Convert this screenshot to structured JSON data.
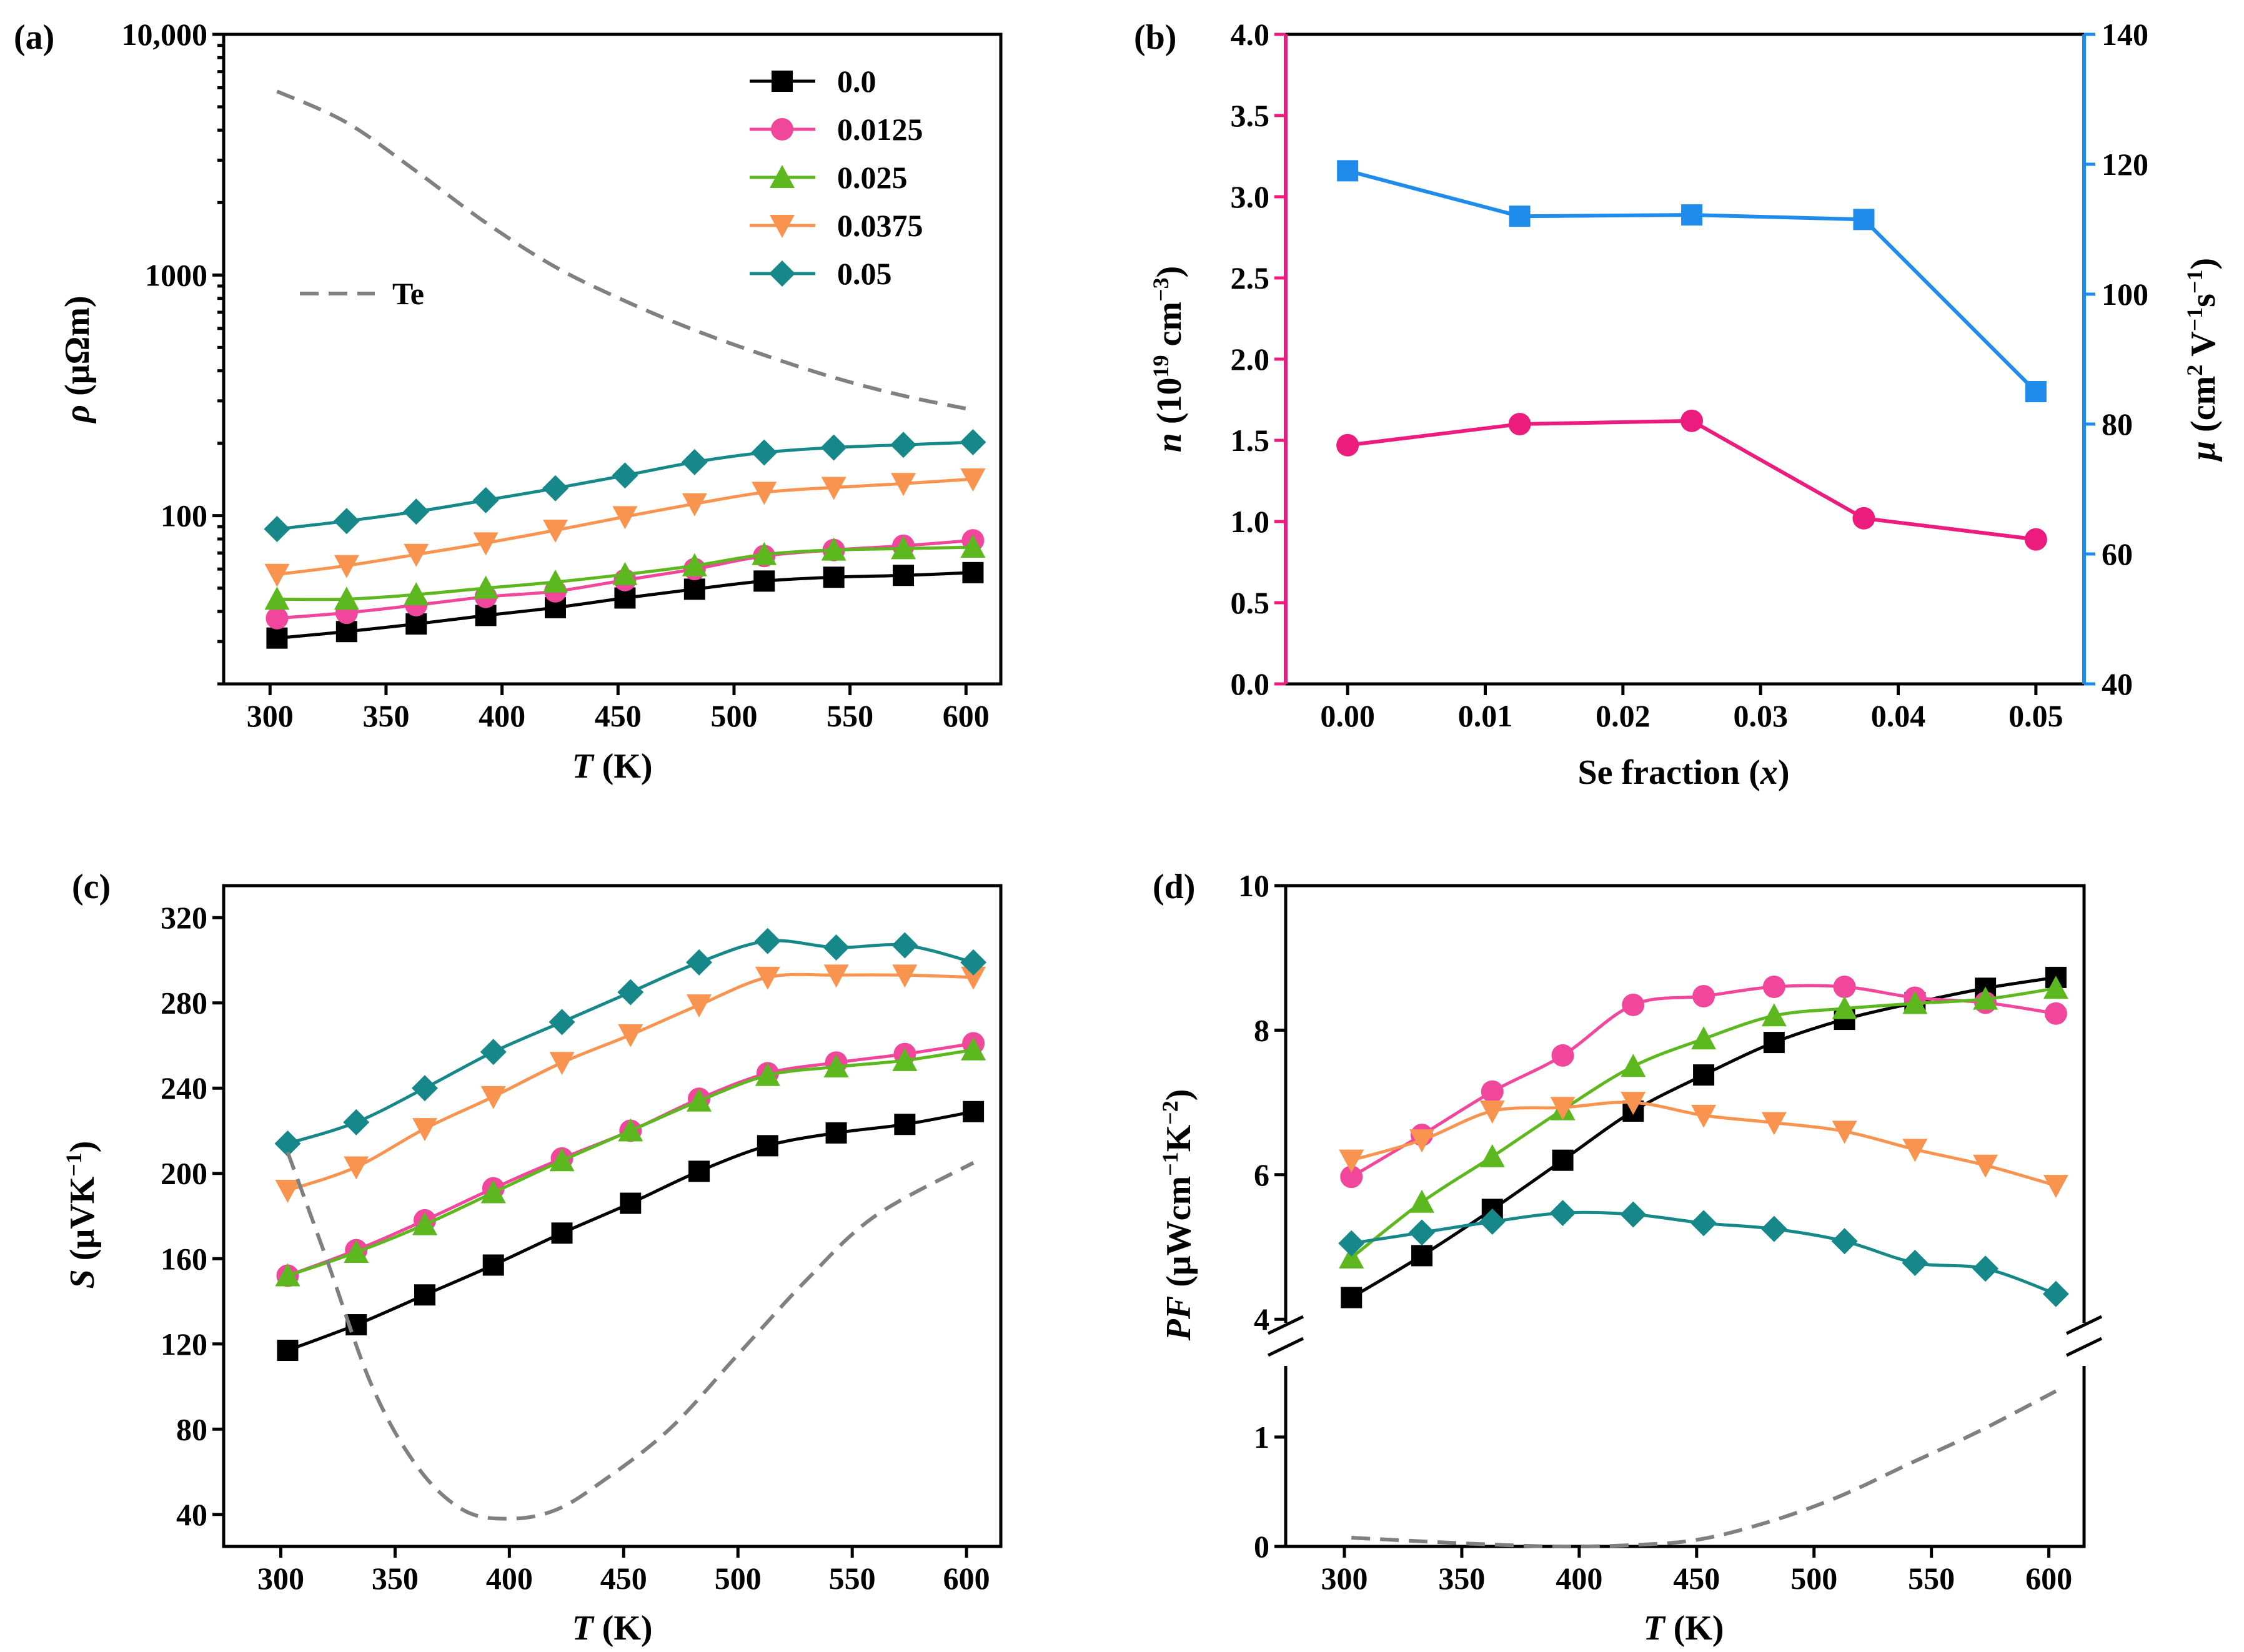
{
  "colors": {
    "0.0": "#000000",
    "0.0125": "#f0469b",
    "0.025": "#5cb81e",
    "0.0375": "#f99450",
    "0.05": "#16888a",
    "Te": "#808080",
    "n": "#ec1c7e",
    "mu": "#1f8ceb"
  },
  "legend": {
    "entries": [
      {
        "label": "0.0",
        "marker": "square"
      },
      {
        "label": "0.0125",
        "marker": "circle"
      },
      {
        "label": "0.025",
        "marker": "triangle-up"
      },
      {
        "label": "0.0375",
        "marker": "triangle-down"
      },
      {
        "label": "0.05",
        "marker": "diamond"
      }
    ],
    "te_label": "Te"
  },
  "chart_data": [
    {
      "panel": "(a)",
      "type": "line",
      "yscale": "log",
      "xlabel": "T (K)",
      "ylabel": "ρ (μΩm)",
      "xlim": [
        280,
        615
      ],
      "ylim": [
        20,
        10000
      ],
      "xticks": [
        300,
        350,
        400,
        450,
        500,
        550,
        600
      ],
      "yticks": [
        100,
        1000,
        10000
      ],
      "ytick_labels": [
        "100",
        "1000",
        "10,000"
      ],
      "series": [
        {
          "name": "0.0",
          "x": [
            303,
            333,
            363,
            393,
            423,
            453,
            483,
            513,
            543,
            573,
            603
          ],
          "values": [
            31,
            33,
            35.5,
            38.5,
            41.5,
            45.5,
            49.5,
            53.5,
            55.5,
            56.5,
            58
          ]
        },
        {
          "name": "0.0125",
          "x": [
            303,
            333,
            363,
            393,
            423,
            453,
            483,
            513,
            543,
            573,
            603
          ],
          "values": [
            37.5,
            39.5,
            42.5,
            46,
            48.5,
            54,
            60,
            68,
            72,
            75,
            79
          ]
        },
        {
          "name": "0.025",
          "x": [
            303,
            333,
            363,
            393,
            423,
            453,
            483,
            513,
            543,
            573,
            603
          ],
          "values": [
            45,
            45,
            47,
            50,
            53,
            57,
            62,
            69,
            72,
            73,
            74
          ]
        },
        {
          "name": "0.0375",
          "x": [
            303,
            333,
            363,
            393,
            423,
            453,
            483,
            513,
            543,
            573,
            603
          ],
          "values": [
            57,
            62,
            69,
            77,
            87,
            99,
            112,
            125,
            131,
            136,
            142
          ]
        },
        {
          "name": "0.05",
          "x": [
            303,
            333,
            363,
            393,
            423,
            453,
            483,
            513,
            543,
            573,
            603
          ],
          "values": [
            88,
            95,
            104,
            116,
            130,
            147,
            167,
            183,
            192,
            197,
            202
          ]
        },
        {
          "name": "Te",
          "style": "dashed",
          "x": [
            303,
            333,
            363,
            393,
            423,
            453,
            483,
            513,
            543,
            573,
            603
          ],
          "values": [
            5800,
            4300,
            2700,
            1650,
            1080,
            780,
            590,
            465,
            375,
            315,
            275
          ]
        }
      ]
    },
    {
      "panel": "(b)",
      "type": "line",
      "xlabel": "Se fraction (x)",
      "ylabel": "n (10¹⁹ cm⁻³)",
      "ylabel_right": "μ (cm² V⁻¹s⁻¹)",
      "xlim": [
        -0.0045,
        0.0535
      ],
      "ylim": [
        0,
        4.0
      ],
      "ylim_right": [
        40,
        140
      ],
      "xticks": [
        0.0,
        0.01,
        0.02,
        0.03,
        0.04,
        0.05
      ],
      "xtick_labels": [
        "0.00",
        "0.01",
        "0.02",
        "0.03",
        "0.04",
        "0.05"
      ],
      "yticks": [
        0.0,
        0.5,
        1.0,
        1.5,
        2.0,
        2.5,
        3.0,
        3.5,
        4.0
      ],
      "ytick_labels": [
        "0.0",
        "0.5",
        "1.0",
        "1.5",
        "2.0",
        "2.5",
        "3.0",
        "3.5",
        "4.0"
      ],
      "yticks_right": [
        40,
        60,
        80,
        100,
        120,
        140
      ],
      "series": [
        {
          "name": "n",
          "axis": "left",
          "marker": "circle",
          "x": [
            0.0,
            0.0125,
            0.025,
            0.0375,
            0.05
          ],
          "values": [
            1.47,
            1.6,
            1.62,
            1.02,
            0.89
          ]
        },
        {
          "name": "mu",
          "axis": "right",
          "marker": "square",
          "x": [
            0.0,
            0.0125,
            0.025,
            0.0375,
            0.05
          ],
          "values": [
            119,
            112,
            112.2,
            111.5,
            85
          ]
        }
      ]
    },
    {
      "panel": "(c)",
      "type": "line",
      "xlabel": "T (K)",
      "ylabel": "S (μVK⁻¹)",
      "xlim": [
        275,
        615
      ],
      "ylim": [
        25,
        335
      ],
      "xticks": [
        300,
        350,
        400,
        450,
        500,
        550,
        600
      ],
      "yticks": [
        40,
        80,
        120,
        160,
        200,
        240,
        280,
        320
      ],
      "series": [
        {
          "name": "0.0",
          "x": [
            303,
            333,
            363,
            393,
            423,
            453,
            483,
            513,
            543,
            573,
            603
          ],
          "values": [
            117,
            129,
            143,
            157,
            172,
            186,
            201,
            213,
            219,
            223,
            229
          ]
        },
        {
          "name": "0.0125",
          "x": [
            303,
            333,
            363,
            393,
            423,
            453,
            483,
            513,
            543,
            573,
            603
          ],
          "values": [
            152,
            164,
            178,
            193,
            207,
            220,
            235,
            247,
            252,
            256,
            261
          ]
        },
        {
          "name": "0.025",
          "x": [
            303,
            333,
            363,
            393,
            423,
            453,
            483,
            513,
            543,
            573,
            603
          ],
          "values": [
            152,
            163,
            176,
            191,
            206,
            220,
            234,
            246,
            250,
            253,
            258
          ]
        },
        {
          "name": "0.0375",
          "x": [
            303,
            333,
            363,
            393,
            423,
            453,
            483,
            513,
            543,
            573,
            603
          ],
          "values": [
            192,
            203,
            221,
            236,
            252,
            265,
            279,
            292,
            293,
            293,
            292
          ]
        },
        {
          "name": "0.05",
          "x": [
            303,
            333,
            363,
            393,
            423,
            453,
            483,
            513,
            543,
            573,
            603
          ],
          "values": [
            214,
            224,
            240,
            257,
            271,
            285,
            299,
            309,
            306,
            307,
            299
          ]
        },
        {
          "name": "Te",
          "style": "dashed",
          "x": [
            303,
            320,
            340,
            360,
            380,
            400,
            420,
            440,
            470,
            500,
            530,
            560,
            603
          ],
          "values": [
            210,
            160,
            100,
            62,
            42,
            38,
            42,
            55,
            80,
            115,
            150,
            180,
            205
          ]
        }
      ]
    },
    {
      "panel": "(d)",
      "type": "line",
      "xlabel": "T (K)",
      "ylabel": "PF (μWcm⁻¹K⁻²)",
      "axis_break": {
        "lower": [
          0,
          1.65
        ],
        "upper": [
          3.95,
          10
        ]
      },
      "xlim": [
        275,
        615
      ],
      "xticks": [
        300,
        350,
        400,
        450,
        500,
        550,
        600
      ],
      "yticks_lower": [
        0,
        1
      ],
      "yticks_upper": [
        4,
        6,
        8,
        10
      ],
      "series": [
        {
          "name": "0.0",
          "x": [
            303,
            333,
            363,
            393,
            423,
            453,
            483,
            513,
            543,
            573,
            603
          ],
          "values": [
            4.3,
            4.88,
            5.52,
            6.2,
            6.88,
            7.38,
            7.83,
            8.15,
            8.38,
            8.58,
            8.73
          ]
        },
        {
          "name": "0.0125",
          "x": [
            303,
            333,
            363,
            393,
            423,
            453,
            483,
            513,
            543,
            573,
            603
          ],
          "values": [
            5.97,
            6.55,
            7.15,
            7.65,
            8.35,
            8.47,
            8.6,
            8.6,
            8.45,
            8.38,
            8.23
          ]
        },
        {
          "name": "0.025",
          "x": [
            303,
            333,
            363,
            393,
            423,
            453,
            483,
            513,
            543,
            573,
            603
          ],
          "values": [
            4.85,
            5.62,
            6.25,
            6.9,
            7.5,
            7.88,
            8.2,
            8.3,
            8.37,
            8.43,
            8.58
          ]
        },
        {
          "name": "0.0375",
          "x": [
            303,
            333,
            363,
            393,
            423,
            453,
            483,
            513,
            543,
            573,
            603
          ],
          "values": [
            6.2,
            6.48,
            6.88,
            6.93,
            7.0,
            6.82,
            6.72,
            6.6,
            6.35,
            6.13,
            5.85
          ]
        },
        {
          "name": "0.05",
          "x": [
            303,
            333,
            363,
            393,
            423,
            453,
            483,
            513,
            543,
            573,
            603
          ],
          "values": [
            5.05,
            5.2,
            5.35,
            5.47,
            5.45,
            5.33,
            5.25,
            5.08,
            4.78,
            4.7,
            4.35
          ]
        },
        {
          "name": "Te",
          "style": "dashed",
          "x": [
            303,
            330,
            360,
            390,
            420,
            450,
            480,
            510,
            540,
            570,
            603
          ],
          "values": [
            0.08,
            0.05,
            0.02,
            0.0,
            0.01,
            0.06,
            0.22,
            0.45,
            0.75,
            1.05,
            1.42
          ]
        }
      ]
    }
  ]
}
